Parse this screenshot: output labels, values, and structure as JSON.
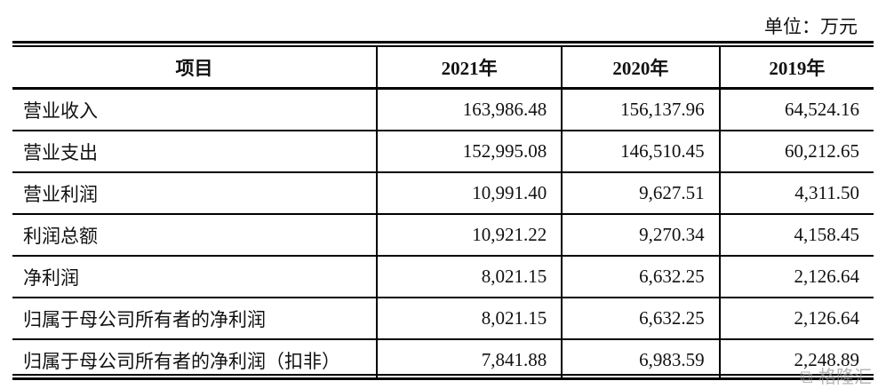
{
  "unit_label": "单位：万元",
  "table": {
    "headers": [
      "项目",
      "2021年",
      "2020年",
      "2019年"
    ],
    "rows": [
      [
        "营业收入",
        "163,986.48",
        "156,137.96",
        "64,524.16"
      ],
      [
        "营业支出",
        "152,995.08",
        "146,510.45",
        "60,212.65"
      ],
      [
        "营业利润",
        "10,991.40",
        "9,627.51",
        "4,311.50"
      ],
      [
        "利润总额",
        "10,921.22",
        "9,270.34",
        "4,158.45"
      ],
      [
        "净利润",
        "8,021.15",
        "6,632.25",
        "2,126.64"
      ],
      [
        "归属于母公司所有者的净利润",
        "8,021.15",
        "6,632.25",
        "2,126.64"
      ],
      [
        "归属于母公司所有者的净利润（扣非）",
        "7,841.88",
        "6,983.59",
        "2,248.89"
      ]
    ]
  },
  "watermark": "格隆汇"
}
